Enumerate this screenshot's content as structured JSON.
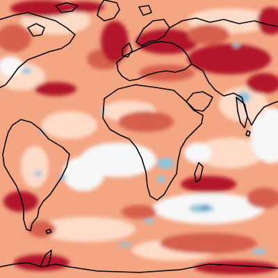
{
  "map": {
    "type": "global temperature anomaly map",
    "projection": "equirectangular",
    "title": "",
    "legend": "",
    "palette": {
      "deep_red": "#b2182b",
      "red": "#d6604d",
      "light_red": "#f4a582",
      "pale": "#fddbc7",
      "white": "#f7f7f7",
      "light_blue": "#92c5de",
      "blue": "#4393c3"
    },
    "coastline_color": "#000000"
  }
}
